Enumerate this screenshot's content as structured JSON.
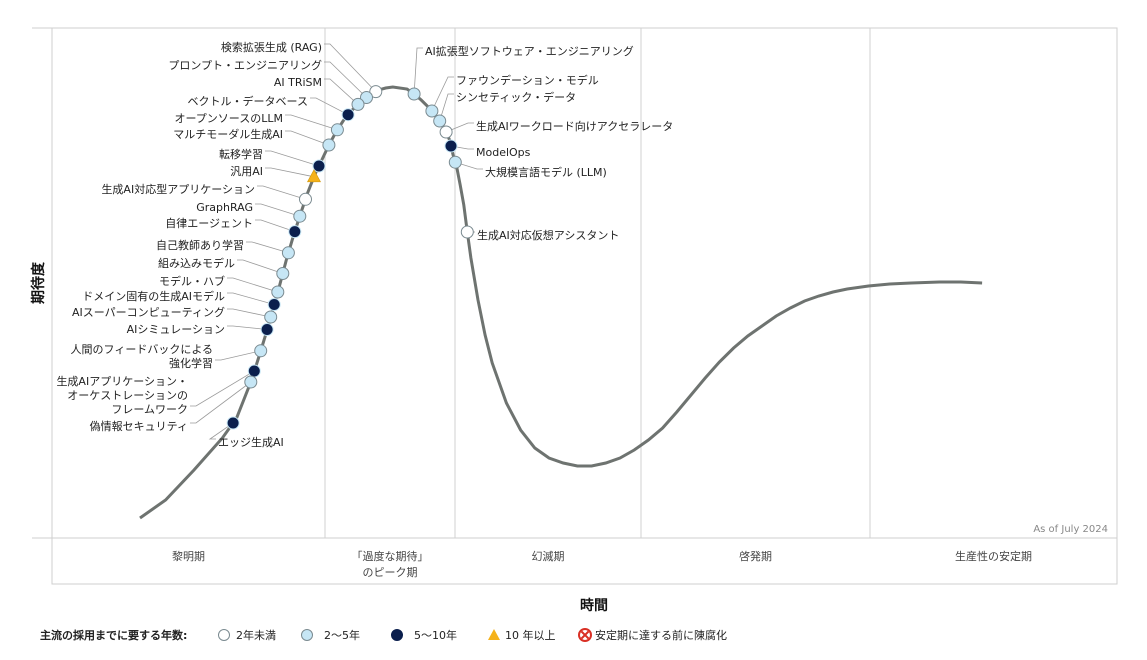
{
  "chart_data": {
    "type": "scatter",
    "title": "",
    "xlabel": "時間",
    "ylabel": "期待度",
    "as_of": "As of July 2024",
    "phases": [
      {
        "label": [
          "黎明期"
        ],
        "start": 0.0,
        "end": 0.41
      },
      {
        "label": [
          "「過度な期待」",
          "のピーク期"
        ],
        "start": 0.41,
        "end": 0.59
      },
      {
        "label": [
          "幻滅期"
        ],
        "start": 0.59,
        "end": 0.8
      },
      {
        "label": [
          "啓発期"
        ],
        "start": 0.8,
        "end": 1.12
      },
      {
        "label": [
          "生産性の安定期"
        ],
        "start": 1.12,
        "end": 1.5
      }
    ],
    "categories": {
      "lt2": {
        "label": "2年未満",
        "color": "#ffffff"
      },
      "2to5": {
        "label": "2～5年",
        "color": "#c6e6f5"
      },
      "5to10": {
        "label": "5～10年",
        "color": "#0b1f4d"
      },
      "gt10": {
        "label": "10 年以上",
        "color": "#f5b21b"
      },
      "obsolete": {
        "label": "安定期に達する前に陳腐化",
        "color": "#d93025"
      }
    },
    "legend_title": "主流の採用までに要する年数:",
    "points": [
      {
        "name": [
          "検索拡張生成 (RAG)"
        ],
        "x": 0.456,
        "cat": "lt2",
        "side": "left"
      },
      {
        "name": [
          "プロンプト・エンジニアリング"
        ],
        "x": 0.443,
        "cat": "2to5",
        "side": "left"
      },
      {
        "name": [
          "AI TRiSM"
        ],
        "x": 0.431,
        "cat": "2to5",
        "side": "left"
      },
      {
        "name": [
          "ベクトル・データベース"
        ],
        "x": 0.417,
        "cat": "5to10",
        "side": "left"
      },
      {
        "name": [
          "オープンソースのLLM"
        ],
        "x": 0.402,
        "cat": "2to5",
        "side": "left"
      },
      {
        "name": [
          "マルチモーダル生成AI"
        ],
        "x": 0.39,
        "cat": "2to5",
        "side": "left"
      },
      {
        "name": [
          "転移学習"
        ],
        "x": 0.376,
        "cat": "5to10",
        "side": "left"
      },
      {
        "name": [
          "汎用AI"
        ],
        "x": 0.369,
        "cat": "gt10",
        "side": "left"
      },
      {
        "name": [
          "生成AI対応型アプリケーション"
        ],
        "x": 0.357,
        "cat": "lt2",
        "side": "left"
      },
      {
        "name": [
          "GraphRAG"
        ],
        "x": 0.349,
        "cat": "2to5",
        "side": "left"
      },
      {
        "name": [
          "自律エージェント"
        ],
        "x": 0.342,
        "cat": "5to10",
        "side": "left"
      },
      {
        "name": [
          "自己教師あり学習"
        ],
        "x": 0.333,
        "cat": "2to5",
        "side": "left"
      },
      {
        "name": [
          "組み込みモデル"
        ],
        "x": 0.325,
        "cat": "2to5",
        "side": "left"
      },
      {
        "name": [
          "モデル・ハブ"
        ],
        "x": 0.318,
        "cat": "2to5",
        "side": "left"
      },
      {
        "name": [
          "ドメイン固有の生成AIモデル"
        ],
        "x": 0.313,
        "cat": "5to10",
        "side": "left"
      },
      {
        "name": [
          "AIスーパーコンピューティング"
        ],
        "x": 0.308,
        "cat": "2to5",
        "side": "left"
      },
      {
        "name": [
          "AIシミュレーション"
        ],
        "x": 0.303,
        "cat": "5to10",
        "side": "left"
      },
      {
        "name": [
          "人間のフィードバックによる",
          "強化学習"
        ],
        "x": 0.294,
        "cat": "2to5",
        "side": "left"
      },
      {
        "name": [
          "生成AIアプリケーション・",
          "オーケストレーションの",
          "フレームワーク"
        ],
        "x": 0.285,
        "cat": "5to10",
        "side": "left"
      },
      {
        "name": [
          "偽情報セキュリティ"
        ],
        "x": 0.28,
        "cat": "2to5",
        "side": "left"
      },
      {
        "name": [
          "エッジ生成AI"
        ],
        "x": 0.255,
        "cat": "5to10",
        "side": "right"
      },
      {
        "name": [
          "AI拡張型ソフトウェア・エンジニアリング"
        ],
        "x": 0.51,
        "cat": "2to5",
        "side": "right"
      },
      {
        "name": [
          "ファウンデーション・モデル"
        ],
        "x": 0.535,
        "cat": "2to5",
        "side": "right"
      },
      {
        "name": [
          "シンセティック・データ"
        ],
        "x": 0.546,
        "cat": "2to5",
        "side": "right"
      },
      {
        "name": [
          "生成AIワークロード向けアクセラレータ"
        ],
        "x": 0.555,
        "cat": "lt2",
        "side": "right"
      },
      {
        "name": [
          "ModelOps"
        ],
        "x": 0.562,
        "cat": "5to10",
        "side": "right"
      },
      {
        "name": [
          "大規模言語モデル (LLM)"
        ],
        "x": 0.568,
        "cat": "2to5",
        "side": "right"
      },
      {
        "name": [
          "生成AI対応仮想アシスタント"
        ],
        "x": 0.585,
        "cat": "lt2",
        "side": "right"
      }
    ]
  }
}
